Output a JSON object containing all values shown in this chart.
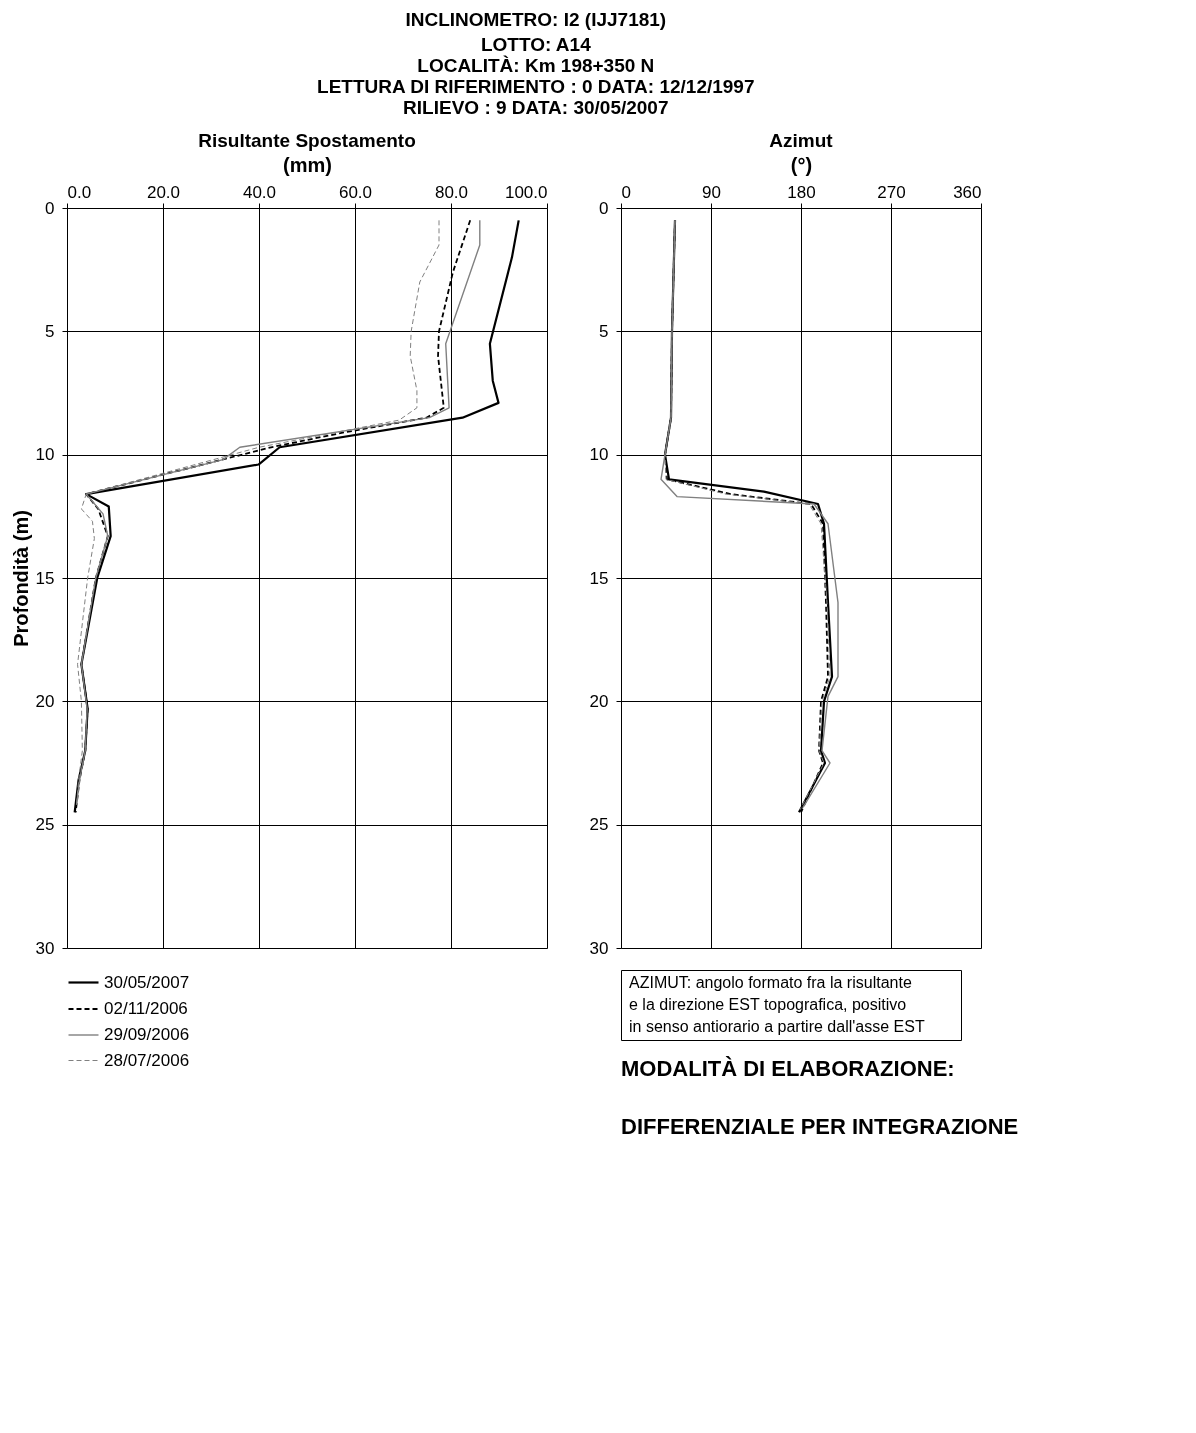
{
  "chart_data": [
    {
      "type": "line",
      "orientation": "horizontal",
      "title": "Risultante Spostamento",
      "xlabel": "(mm)",
      "ylabel": "Profondità (m)",
      "annotations": [
        "INCLINOMETRO: I2  (IJJ7181)",
        "LOTTO:   A14",
        "LOCALITÀ: Km 198+350 N",
        "LETTURA DI RIFERIMENTO :   0   DATA:   12/12/1997",
        "RILIEVO :   9   DATA:   30/05/2007"
      ],
      "xlim": [
        0,
        100
      ],
      "xticks": [
        {
          "value": 0,
          "label": "0.0"
        },
        {
          "value": 20,
          "label": "20.0"
        },
        {
          "value": 40,
          "label": "40.0"
        },
        {
          "value": 60,
          "label": "60.0"
        },
        {
          "value": 80,
          "label": "80.0"
        },
        {
          "value": 100,
          "label": "100.0"
        }
      ],
      "ylim": [
        30,
        0
      ],
      "yticks": [
        0,
        5,
        10,
        15,
        20,
        25,
        30
      ],
      "grid": true,
      "legend": "bottom",
      "marker": "none",
      "series": [
        {
          "name": "30/05/2007",
          "color": "#000000",
          "line_style": "solid",
          "x": [
            0.5,
            2,
            5.5,
            7,
            7.9,
            8.5,
            9.7,
            10.4,
            11.6,
            12.1,
            13.3,
            15,
            18.5,
            20.3,
            22,
            23.2,
            24.5
          ],
          "values": [
            94.1,
            92.7,
            88.1,
            88.7,
            89.9,
            82.4,
            44.3,
            39.9,
            4.0,
            8.7,
            9.1,
            6.3,
            3.0,
            4.3,
            3.8,
            2.4,
            1.6
          ]
        },
        {
          "name": "02/11/2006",
          "color": "#000000",
          "line_style": "dashed",
          "x": [
            0.5,
            2.6,
            5,
            6,
            8.1,
            8.5,
            9.1,
            9.7,
            11.6,
            12.2,
            13.3,
            15,
            18.5,
            20.3,
            22,
            23.2,
            24.5
          ],
          "values": [
            84.0,
            80.4,
            77.5,
            77.3,
            78.5,
            74.9,
            57.7,
            42.5,
            4.0,
            6.5,
            8.5,
            6.0,
            3.0,
            4.3,
            3.8,
            2.6,
            1.8
          ]
        },
        {
          "name": "29/09/2006",
          "color": "#808080",
          "line_style": "solid",
          "x": [
            0.5,
            1.5,
            5.5,
            8.1,
            8.5,
            9.7,
            10.2,
            11.6,
            12.4,
            13.3,
            15,
            18.5,
            20.3,
            22,
            23.2,
            24.2
          ],
          "values": [
            86.0,
            86.0,
            78.9,
            79.6,
            75.5,
            36.0,
            32.5,
            4.0,
            7.5,
            8.5,
            6.0,
            3.0,
            4.2,
            3.8,
            2.6,
            2.0
          ]
        },
        {
          "name": "28/07/2006",
          "color": "#808080",
          "line_style": "dashed",
          "x": [
            0.5,
            1.5,
            3,
            5,
            6,
            7.4,
            8.1,
            8.6,
            9.7,
            11.6,
            12.2,
            12.7,
            13.4,
            15,
            18.5,
            20,
            22,
            23.2,
            24.2
          ],
          "values": [
            77.5,
            77.5,
            73.5,
            71.7,
            71.5,
            72.9,
            72.9,
            69.2,
            40.0,
            4.0,
            3.0,
            5.3,
            5.7,
            4.3,
            2.2,
            3.0,
            3.2,
            2.4,
            2.0
          ]
        }
      ]
    },
    {
      "type": "line",
      "orientation": "horizontal",
      "title": "Azimut",
      "xlabel": "(°)",
      "annotations": [
        "AZIMUT: angolo formato fra la risultante",
        "e la direzione  EST topografica, positivo",
        " in senso antiorario a partire dall'asse EST",
        "MODALITÀ DI ELABORAZIONE:",
        "DIFFERENZIALE PER INTEGRAZIONE"
      ],
      "xlim": [
        0,
        360
      ],
      "xticks": [
        0,
        90,
        180,
        270,
        360
      ],
      "ylim": [
        30,
        0
      ],
      "yticks": [
        0,
        5,
        10,
        15,
        20,
        25,
        30
      ],
      "grid": true,
      "legend": false,
      "marker": "none",
      "series": [
        {
          "color": "#000000",
          "line_style": "solid",
          "x": [
            0.5,
            5,
            8.5,
            10,
            11,
            11.5,
            12,
            12.8,
            16,
            19,
            20,
            22,
            22.5,
            24.5
          ],
          "values": [
            54,
            51,
            50,
            44,
            48,
            143,
            197,
            203,
            207,
            211,
            203,
            200,
            204,
            178
          ]
        },
        {
          "color": "#000000",
          "line_style": "dashed",
          "x": [
            0.5,
            5,
            8.5,
            10,
            11,
            11.6,
            12,
            12.8,
            16,
            19,
            20,
            22,
            22.5,
            24.5
          ],
          "values": [
            54,
            51,
            50,
            44,
            46,
            110,
            190,
            202,
            205,
            207,
            200,
            198,
            202,
            180
          ]
        },
        {
          "color": "#808080",
          "line_style": "solid",
          "x": [
            0.5,
            5,
            8.5,
            10,
            11,
            11.7,
            12,
            12.8,
            16,
            19,
            19.8,
            22,
            22.5,
            24.3
          ],
          "values": [
            54,
            51,
            50,
            44,
            40,
            56,
            193,
            207,
            217,
            217,
            207,
            201,
            209,
            182
          ]
        },
        {
          "color": "#808080",
          "line_style": "dashed",
          "x": [
            0.5,
            5,
            8.5,
            10,
            11,
            11.6,
            12,
            12.8,
            16,
            19,
            20,
            22,
            22.5,
            24.4
          ],
          "values": [
            54,
            51,
            50,
            44,
            45,
            105,
            188,
            200,
            206,
            209,
            201,
            198,
            203,
            179
          ]
        }
      ]
    }
  ]
}
